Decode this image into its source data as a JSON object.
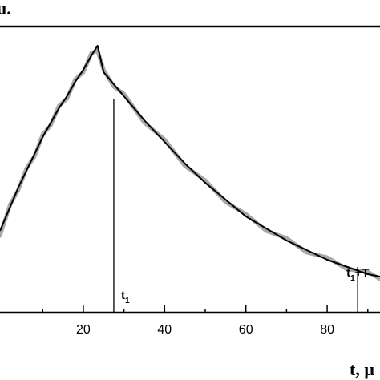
{
  "chart_data": {
    "type": "line",
    "ylabel": "u.",
    "xlabel": "t, μ",
    "xlim": [
      -0.5,
      93
    ],
    "ylim": [
      -0.02,
      1.17
    ],
    "grid": false,
    "x_ticks": [
      20,
      40,
      60,
      80
    ],
    "series": [
      {
        "x": [
          -0.5,
          2,
          4,
          6,
          8,
          10,
          12,
          14,
          16,
          18,
          20,
          22,
          23.5,
          25,
          27.5,
          30,
          35,
          40,
          45,
          50,
          55,
          60,
          65,
          70,
          75,
          80,
          85,
          90,
          93
        ],
        "y": [
          0.32,
          0.42,
          0.5,
          0.57,
          0.64,
          0.71,
          0.77,
          0.83,
          0.88,
          0.94,
          0.99,
          1.05,
          1.09,
          0.98,
          0.93,
          0.88,
          0.78,
          0.69,
          0.6,
          0.52,
          0.45,
          0.38,
          0.33,
          0.28,
          0.24,
          0.2,
          0.17,
          0.14,
          0.13
        ]
      },
      {
        "x": [
          -0.5,
          2,
          4,
          6,
          8,
          10,
          12,
          14,
          16,
          18,
          20,
          22,
          23.5,
          25,
          27.5,
          30,
          35,
          40,
          45,
          50,
          55,
          60,
          65,
          70,
          75,
          80,
          85,
          90,
          93
        ],
        "y": [
          0.3,
          0.43,
          0.49,
          0.58,
          0.63,
          0.72,
          0.76,
          0.84,
          0.87,
          0.95,
          0.98,
          1.06,
          1.07,
          0.99,
          0.92,
          0.89,
          0.77,
          0.7,
          0.59,
          0.53,
          0.44,
          0.39,
          0.32,
          0.29,
          0.23,
          0.21,
          0.16,
          0.15,
          0.12
        ]
      }
    ],
    "markers": [
      {
        "label": "t",
        "sub": "1",
        "x": 27.5,
        "y_top": 0.87
      },
      {
        "label": "t",
        "sub": "1",
        "suffix": "+T",
        "x": 87.5,
        "y_top": 0.17
      }
    ]
  }
}
